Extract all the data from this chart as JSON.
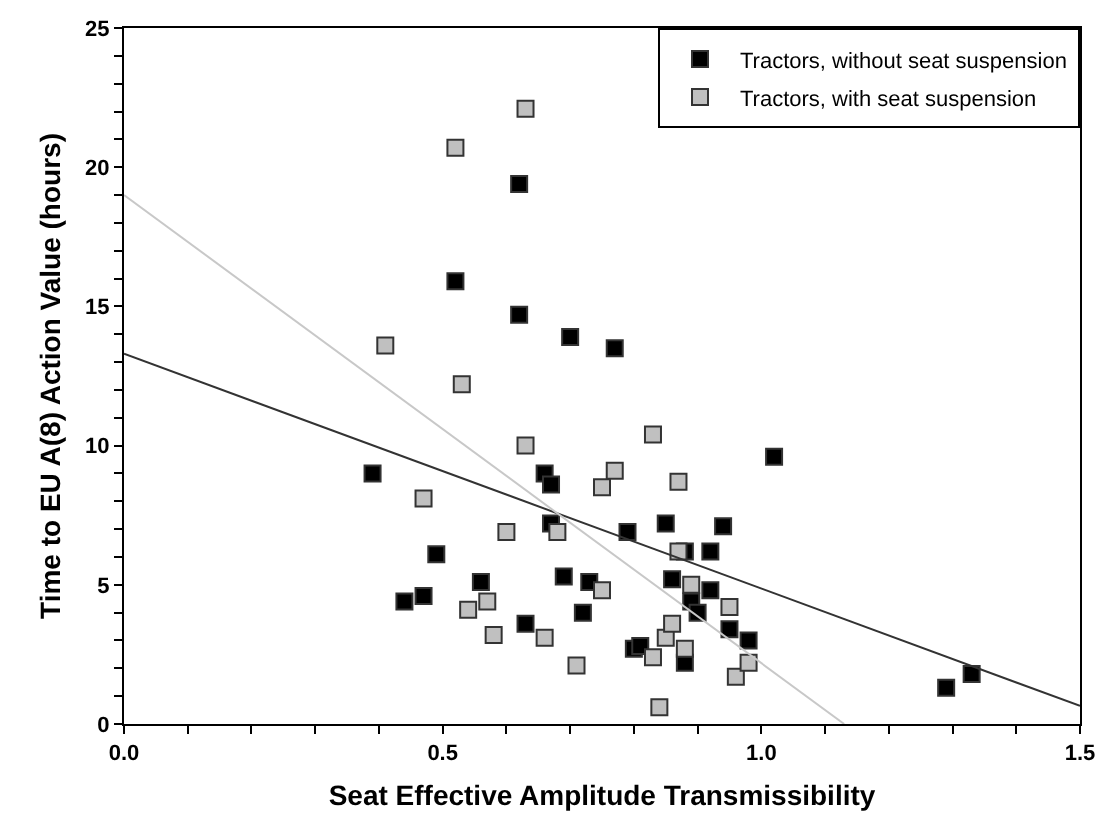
{
  "chart_data": {
    "type": "scatter",
    "xlabel": "Seat Effective Amplitude Transmissibility",
    "ylabel": "Time to EU A(8) Action Value (hours)",
    "xlim": [
      0,
      1.5
    ],
    "ylim": [
      0,
      25
    ],
    "xticks": [
      {
        "value": 0,
        "label": "0.0"
      },
      {
        "value": 0.1,
        "label": null
      },
      {
        "value": 0.2,
        "label": null
      },
      {
        "value": 0.3,
        "label": null
      },
      {
        "value": 0.4,
        "label": null
      },
      0.5,
      {
        "value": 0.6,
        "label": null
      },
      {
        "value": 0.7,
        "label": null
      },
      {
        "value": 0.8,
        "label": null
      },
      {
        "value": 0.9,
        "label": null
      },
      {
        "value": 1,
        "label": "1.0"
      },
      {
        "value": 1.1,
        "label": null
      },
      {
        "value": 1.2,
        "label": null
      },
      {
        "value": 1.3,
        "label": null
      },
      {
        "value": 1.4,
        "label": null
      },
      1.5
    ],
    "yticks": [
      0,
      {
        "value": 1,
        "label": null
      },
      {
        "value": 2,
        "label": null
      },
      {
        "value": 3,
        "label": null
      },
      {
        "value": 4,
        "label": null
      },
      5,
      {
        "value": 6,
        "label": null
      },
      {
        "value": 7,
        "label": null
      },
      {
        "value": 8,
        "label": null
      },
      {
        "value": 9,
        "label": null
      },
      10,
      {
        "value": 11,
        "label": null
      },
      {
        "value": 12,
        "label": null
      },
      {
        "value": 13,
        "label": null
      },
      {
        "value": 14,
        "label": null
      },
      15,
      {
        "value": 16,
        "label": null
      },
      {
        "value": 17,
        "label": null
      },
      {
        "value": 18,
        "label": null
      },
      {
        "value": 19,
        "label": null
      },
      20,
      {
        "value": 21,
        "label": null
      },
      {
        "value": 22,
        "label": null
      },
      {
        "value": 23,
        "label": null
      },
      {
        "value": 24,
        "label": null
      },
      25
    ],
    "legend": "top right",
    "series": [
      {
        "name": "Tractors, without seat suspension",
        "color": "#000000",
        "marker": "square",
        "x": [
          0.39,
          0.44,
          0.47,
          0.49,
          0.52,
          0.56,
          0.62,
          0.62,
          0.63,
          0.66,
          0.67,
          0.67,
          0.69,
          0.7,
          0.72,
          0.73,
          0.77,
          0.79,
          0.8,
          0.81,
          0.85,
          0.86,
          0.88,
          0.88,
          0.89,
          0.9,
          0.92,
          0.92,
          0.94,
          0.95,
          0.98,
          1.02,
          1.29,
          1.33
        ],
        "values": [
          9.0,
          4.4,
          4.6,
          6.1,
          15.9,
          5.1,
          19.4,
          14.7,
          3.6,
          9.0,
          8.6,
          7.2,
          5.3,
          13.9,
          4.0,
          5.1,
          13.5,
          6.9,
          2.7,
          2.8,
          7.2,
          5.2,
          2.2,
          6.2,
          4.4,
          4.0,
          4.8,
          6.2,
          7.1,
          3.4,
          3.0,
          9.6,
          1.3,
          1.8
        ]
      },
      {
        "name": "Tractors, with seat suspension",
        "color": "#c0c0c0",
        "marker": "square",
        "x": [
          0.41,
          0.47,
          0.52,
          0.53,
          0.54,
          0.57,
          0.58,
          0.6,
          0.63,
          0.63,
          0.66,
          0.68,
          0.71,
          0.75,
          0.75,
          0.77,
          0.83,
          0.83,
          0.84,
          0.85,
          0.86,
          0.87,
          0.87,
          0.88,
          0.89,
          0.95,
          0.96,
          0.98
        ],
        "values": [
          13.6,
          8.1,
          20.7,
          12.2,
          4.1,
          4.4,
          3.2,
          6.9,
          10.0,
          22.1,
          3.1,
          6.9,
          2.1,
          8.5,
          4.8,
          9.1,
          10.4,
          2.4,
          0.6,
          3.1,
          3.6,
          8.7,
          6.2,
          2.7,
          5.0,
          4.2,
          1.7,
          2.2
        ]
      },
      {
        "type": "line",
        "marker": "none",
        "color": "#333333",
        "x": [
          0,
          1.5
        ],
        "values": [
          13.3,
          0.65
        ]
      },
      {
        "type": "line",
        "marker": "none",
        "color": "#c8c8c8",
        "x": [
          0,
          1.13
        ],
        "values": [
          19.0,
          0
        ]
      }
    ]
  }
}
